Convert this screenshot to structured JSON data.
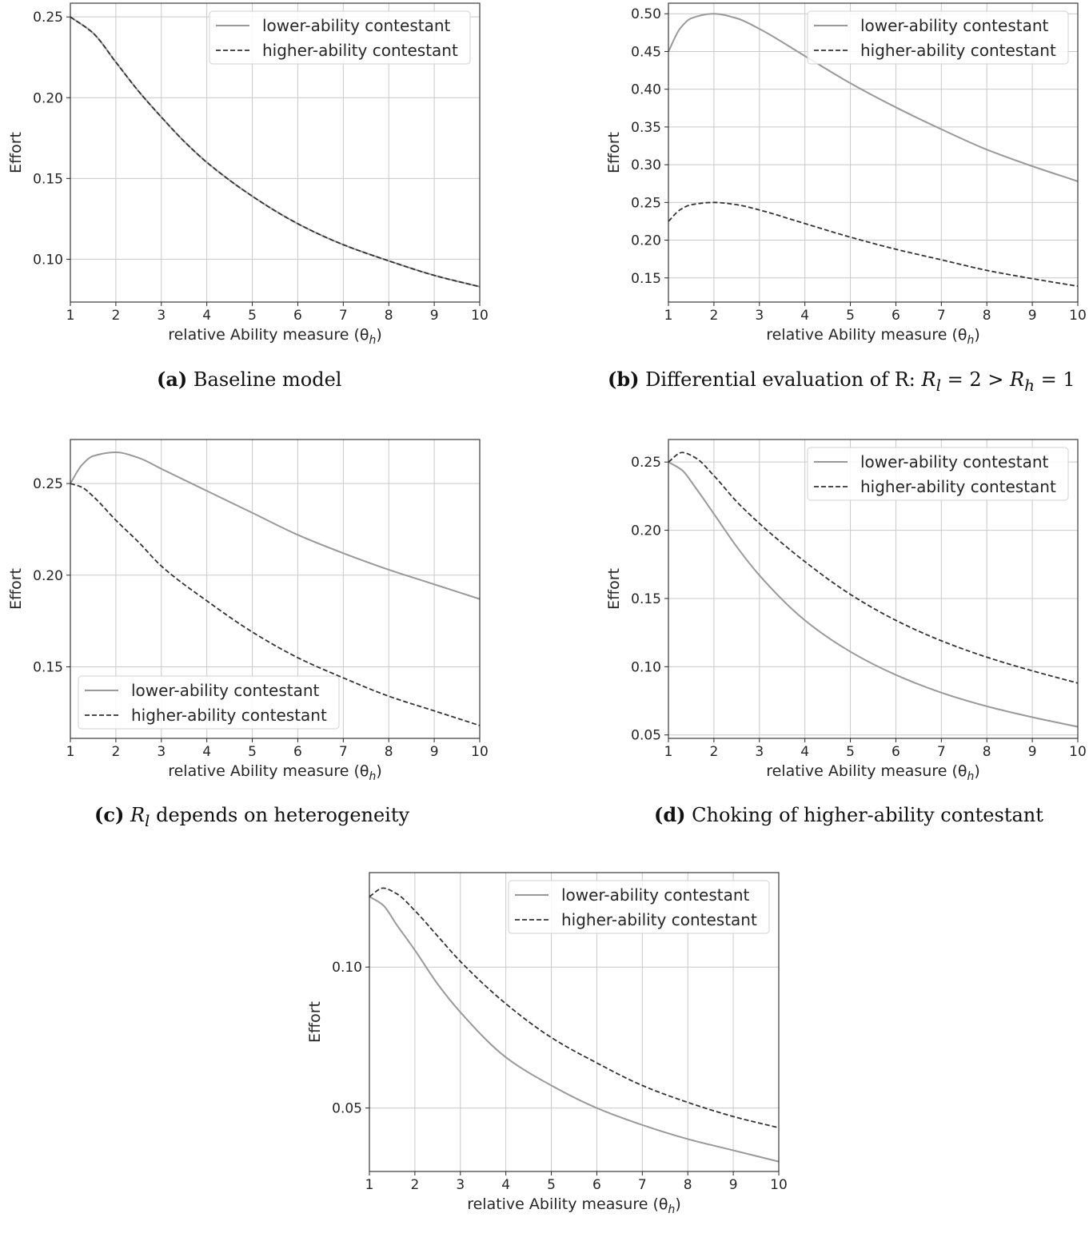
{
  "captions": [
    {
      "tag": "(a)",
      "text": "Baseline model"
    },
    {
      "tag": "(b)",
      "text": "Differential evaluation of R: ",
      "math": {
        "rl": "R",
        "rl_sub": "l",
        "rl_val": " = 2 > ",
        "rh": "R",
        "rh_sub": "h",
        "rh_val": " = 1"
      }
    },
    {
      "tag": "(c)",
      "text": "depends on heterogeneity",
      "math": {
        "v": "R",
        "sub": "l"
      }
    },
    {
      "tag": "(d)",
      "text": "Choking of higher-ability contestant"
    }
  ],
  "chart_data": [
    {
      "id": "a",
      "type": "line",
      "xlabel": "relative Ability measure (θh)",
      "ylabel": "Effort",
      "xlim": [
        1,
        10
      ],
      "ylim": [
        0.0735,
        0.2585
      ],
      "xticks": [
        1,
        2,
        3,
        4,
        5,
        6,
        7,
        8,
        9,
        10
      ],
      "yticks": [
        0.1,
        0.15,
        0.2,
        0.25
      ],
      "ytick_labels": [
        "0.10",
        "0.15",
        "0.20",
        "0.25"
      ],
      "grid": true,
      "legend": "upper-right",
      "x": [
        1,
        1.5,
        2,
        2.5,
        3,
        3.5,
        4,
        5,
        6,
        7,
        8,
        9,
        10
      ],
      "series": [
        {
          "name": "lower-ability contestant",
          "style": "solid",
          "color": "#999999",
          "values": [
            0.25,
            0.24,
            0.222,
            0.204,
            0.188,
            0.173,
            0.16,
            0.139,
            0.122,
            0.109,
            0.099,
            0.09,
            0.083
          ]
        },
        {
          "name": "higher-ability contestant",
          "style": "dashed",
          "color": "#333333",
          "values": [
            0.25,
            0.24,
            0.222,
            0.204,
            0.188,
            0.173,
            0.16,
            0.139,
            0.122,
            0.109,
            0.099,
            0.09,
            0.083
          ]
        }
      ]
    },
    {
      "id": "b",
      "type": "line",
      "xlabel": "relative Ability measure (θh)",
      "ylabel": "Effort",
      "xlim": [
        1,
        10
      ],
      "ylim": [
        0.118,
        0.514
      ],
      "xticks": [
        1,
        2,
        3,
        4,
        5,
        6,
        7,
        8,
        9,
        10
      ],
      "yticks": [
        0.15,
        0.2,
        0.25,
        0.3,
        0.35,
        0.4,
        0.45,
        0.5
      ],
      "ytick_labels": [
        "0.15",
        "0.20",
        "0.25",
        "0.30",
        "0.35",
        "0.40",
        "0.45",
        "0.50"
      ],
      "grid": true,
      "legend": "upper-right",
      "x": [
        1,
        1.25,
        1.5,
        2,
        2.5,
        3,
        4,
        5,
        6,
        7,
        8,
        9,
        10
      ],
      "series": [
        {
          "name": "lower-ability contestant",
          "style": "solid",
          "color": "#999999",
          "values": [
            0.45,
            0.48,
            0.494,
            0.5,
            0.494,
            0.48,
            0.444,
            0.408,
            0.376,
            0.347,
            0.32,
            0.298,
            0.278
          ]
        },
        {
          "name": "higher-ability contestant",
          "style": "dashed",
          "color": "#333333",
          "values": [
            0.225,
            0.24,
            0.247,
            0.25,
            0.247,
            0.24,
            0.222,
            0.204,
            0.188,
            0.174,
            0.16,
            0.149,
            0.139
          ]
        }
      ]
    },
    {
      "id": "c",
      "type": "line",
      "xlabel": "relative Ability measure (θh)",
      "ylabel": "Effort",
      "xlim": [
        1,
        10
      ],
      "ylim": [
        0.111,
        0.274
      ],
      "xticks": [
        1,
        2,
        3,
        4,
        5,
        6,
        7,
        8,
        9,
        10
      ],
      "yticks": [
        0.15,
        0.2,
        0.25
      ],
      "ytick_labels": [
        "0.15",
        "0.20",
        "0.25"
      ],
      "grid": true,
      "legend": "lower-left",
      "x": [
        1,
        1.25,
        1.5,
        2,
        2.5,
        3,
        4,
        5,
        6,
        7,
        8,
        9,
        10
      ],
      "series": [
        {
          "name": "lower-ability contestant",
          "style": "solid",
          "color": "#999999",
          "values": [
            0.25,
            0.26,
            0.265,
            0.267,
            0.264,
            0.258,
            0.246,
            0.234,
            0.222,
            0.212,
            0.203,
            0.195,
            0.187
          ]
        },
        {
          "name": "higher-ability contestant",
          "style": "dashed",
          "color": "#333333",
          "values": [
            0.25,
            0.248,
            0.243,
            0.23,
            0.218,
            0.205,
            0.186,
            0.169,
            0.155,
            0.144,
            0.134,
            0.126,
            0.118
          ]
        }
      ]
    },
    {
      "id": "d",
      "type": "line",
      "xlabel": "relative Ability measure (θh)",
      "ylabel": "Effort",
      "xlim": [
        1,
        10
      ],
      "ylim": [
        0.0475,
        0.2665
      ],
      "xticks": [
        1,
        2,
        3,
        4,
        5,
        6,
        7,
        8,
        9,
        10
      ],
      "yticks": [
        0.05,
        0.1,
        0.15,
        0.2,
        0.25
      ],
      "ytick_labels": [
        "0.05",
        "0.10",
        "0.15",
        "0.20",
        "0.25"
      ],
      "grid": true,
      "legend": "upper-right",
      "x": [
        1,
        1.3,
        1.6,
        2,
        2.5,
        3,
        4,
        5,
        6,
        7,
        8,
        9,
        10
      ],
      "series": [
        {
          "name": "lower-ability contestant",
          "style": "solid",
          "color": "#999999",
          "values": [
            0.25,
            0.244,
            0.231,
            0.212,
            0.188,
            0.167,
            0.134,
            0.111,
            0.094,
            0.081,
            0.071,
            0.063,
            0.056
          ]
        },
        {
          "name": "higher-ability contestant",
          "style": "dashed",
          "color": "#333333",
          "values": [
            0.25,
            0.257,
            0.253,
            0.24,
            0.221,
            0.205,
            0.177,
            0.153,
            0.134,
            0.119,
            0.107,
            0.097,
            0.088
          ]
        }
      ]
    },
    {
      "id": "e",
      "type": "line",
      "xlabel": "relative Ability measure (θh)",
      "ylabel": "Effort",
      "xlim": [
        1,
        10
      ],
      "ylim": [
        0.0275,
        0.1335
      ],
      "xticks": [
        1,
        2,
        3,
        4,
        5,
        6,
        7,
        8,
        9,
        10
      ],
      "yticks": [
        0.05,
        0.1
      ],
      "ytick_labels": [
        "0.05",
        "0.10"
      ],
      "grid": true,
      "legend": "upper-right",
      "x": [
        1,
        1.3,
        1.6,
        2,
        2.5,
        3,
        4,
        5,
        6,
        7,
        8,
        9,
        10
      ],
      "series": [
        {
          "name": "lower-ability contestant",
          "style": "solid",
          "color": "#999999",
          "values": [
            0.125,
            0.122,
            0.115,
            0.106,
            0.094,
            0.084,
            0.068,
            0.058,
            0.05,
            0.044,
            0.039,
            0.035,
            0.031
          ]
        },
        {
          "name": "higher-ability contestant",
          "style": "dashed",
          "color": "#333333",
          "values": [
            0.125,
            0.128,
            0.126,
            0.12,
            0.111,
            0.102,
            0.087,
            0.075,
            0.066,
            0.058,
            0.052,
            0.047,
            0.043
          ]
        }
      ]
    }
  ]
}
